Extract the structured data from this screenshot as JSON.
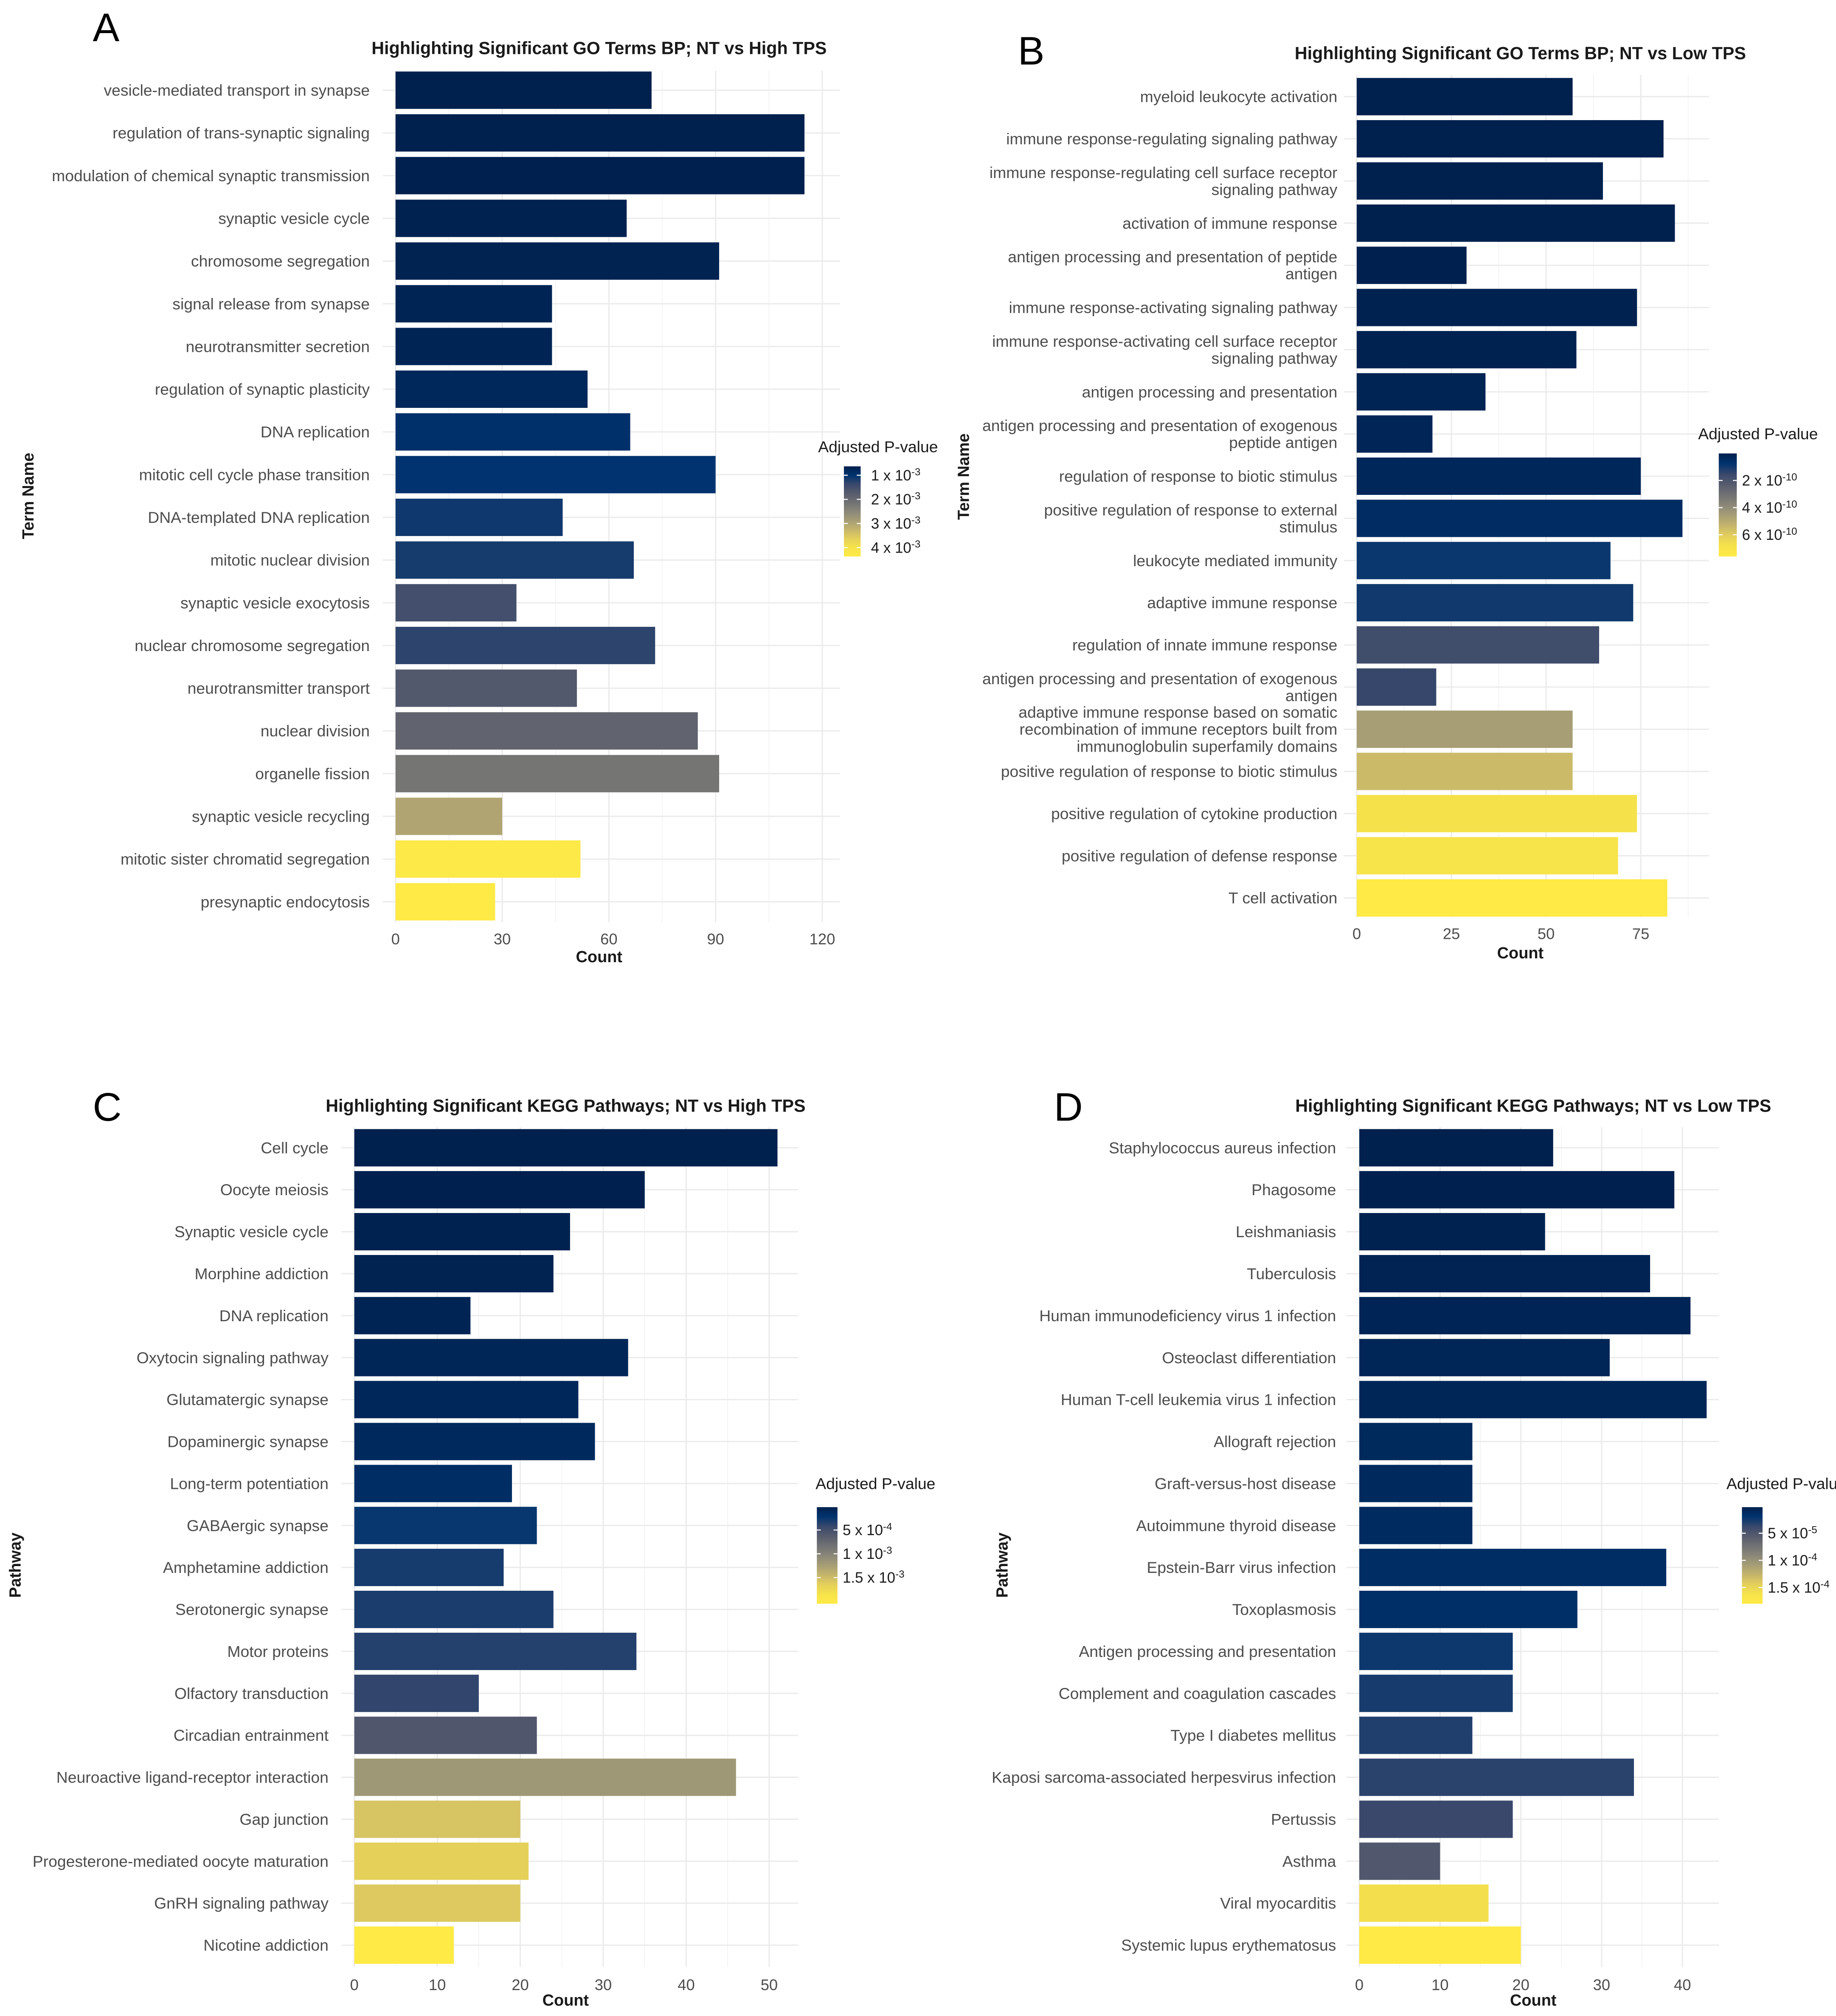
{
  "chart_data": [
    {
      "panel": "A",
      "type": "bar",
      "orientation": "horizontal",
      "title": "Highlighting Significant GO Terms BP; NT vs High TPS",
      "xlabel": "Count",
      "ylabel": "Term Name",
      "xlim": [
        0,
        125
      ],
      "xticks": [
        0,
        30,
        60,
        90,
        120
      ],
      "legend": {
        "title": "Adjusted P-value",
        "placement": "right",
        "ticks": [
          {
            "value": 0.001,
            "base": "1 x 10",
            "exp": "-3"
          },
          {
            "value": 0.002,
            "base": "2 x 10",
            "exp": "-3"
          },
          {
            "value": 0.003,
            "base": "3 x 10",
            "exp": "-3"
          },
          {
            "value": 0.004,
            "base": "4 x 10",
            "exp": "-3"
          }
        ]
      },
      "color_range": [
        0.00063,
        0.00437
      ],
      "categories": [
        "vesicle-mediated transport in synapse",
        "regulation of trans-synaptic signaling",
        "modulation of chemical synaptic transmission",
        "synaptic vesicle cycle",
        "chromosome segregation",
        "signal release from synapse",
        "neurotransmitter secretion",
        "regulation of synaptic plasticity",
        "DNA replication",
        "mitotic cell cycle phase transition",
        "DNA-templated DNA replication",
        "mitotic nuclear division",
        "synaptic vesicle exocytosis",
        "nuclear chromosome segregation",
        "neurotransmitter transport",
        "nuclear division",
        "organelle fission",
        "synaptic vesicle recycling",
        "mitotic sister chromatid segregation",
        "presynaptic endocytosis"
      ],
      "values": [
        72,
        115,
        115,
        65,
        91,
        44,
        44,
        54,
        66,
        90,
        47,
        67,
        34,
        73,
        51,
        85,
        91,
        30,
        52,
        28
      ],
      "padj": [
        0.00063,
        0.00064,
        0.00065,
        0.00066,
        0.00068,
        0.0007,
        0.00072,
        0.00078,
        0.00095,
        0.001,
        0.0011,
        0.00115,
        0.0015,
        0.0013,
        0.0017,
        0.0019,
        0.0022,
        0.003,
        0.0043,
        0.00437
      ]
    },
    {
      "panel": "B",
      "type": "bar",
      "orientation": "horizontal",
      "title": "Highlighting Significant GO Terms BP; NT vs Low TPS",
      "xlabel": "Count",
      "ylabel": "Term Name",
      "xlim": [
        0,
        93
      ],
      "xticks": [
        0,
        25,
        50,
        75
      ],
      "legend": {
        "title": "Adjusted P-value",
        "placement": "right",
        "ticks": [
          {
            "value": 2e-10,
            "base": "2 x 10",
            "exp": "-10"
          },
          {
            "value": 4e-10,
            "base": "4 x 10",
            "exp": "-10"
          },
          {
            "value": 6e-10,
            "base": "6 x 10",
            "exp": "-10"
          }
        ]
      },
      "color_range": [
        1e-12,
        7.6e-10
      ],
      "categories": [
        "myeloid leukocyte activation",
        "immune response-regulating signaling pathway",
        "immune response-regulating cell surface receptor\nsignaling pathway",
        "activation of immune response",
        "antigen processing and presentation of peptide\nantigen",
        "immune response-activating signaling pathway",
        "immune response-activating cell surface receptor\nsignaling pathway",
        "antigen processing and presentation",
        "antigen processing and presentation of exogenous\npeptide antigen",
        "regulation of response to biotic stimulus",
        "positive regulation of response to external\nstimulus",
        "leukocyte mediated immunity",
        "adaptive immune response",
        "regulation of innate immune response",
        "antigen processing and presentation of exogenous\nantigen",
        "adaptive immune response based on somatic\nrecombination of immune receptors built from\nimmunoglobulin superfamily domains",
        "positive regulation of response to biotic stimulus",
        "positive regulation of cytokine production",
        "positive regulation of defense response",
        "T cell activation"
      ],
      "values": [
        57,
        81,
        65,
        84,
        29,
        74,
        58,
        34,
        20,
        75,
        86,
        67,
        73,
        64,
        21,
        57,
        57,
        74,
        69,
        82
      ],
      "padj": [
        1e-12,
        2e-12,
        3e-12,
        4e-12,
        6e-12,
        8e-12,
        1e-11,
        1.5e-11,
        2e-11,
        3e-11,
        5e-11,
        9e-11,
        1e-10,
        1.7e-10,
        1.5e-10,
        4.6e-10,
        5.5e-10,
        6.8e-10,
        6.9e-10,
        7.6e-10
      ]
    },
    {
      "panel": "C",
      "type": "bar",
      "orientation": "horizontal",
      "title": "Highlighting Significant KEGG Pathways;  NT vs High TPS",
      "xlabel": "Count",
      "ylabel": "Pathway",
      "xlim": [
        0,
        53.5
      ],
      "xticks": [
        0,
        10,
        20,
        30,
        40,
        50
      ],
      "legend": {
        "title": "Adjusted P-value",
        "placement": "right",
        "ticks": [
          {
            "value": 0.0005,
            "base": "5 x 10",
            "exp": "-4"
          },
          {
            "value": 0.001,
            "base": "1 x 10",
            "exp": "-3"
          },
          {
            "value": 0.0015,
            "base": "1.5 x 10",
            "exp": "-3"
          }
        ]
      },
      "color_range": [
        2e-05,
        0.00205
      ],
      "categories": [
        "Cell cycle",
        "Oocyte meiosis",
        "Synaptic vesicle cycle",
        "Morphine addiction",
        "DNA replication",
        "Oxytocin signaling pathway",
        "Glutamatergic synapse",
        "Dopaminergic synapse",
        "Long-term potentiation",
        "GABAergic synapse",
        "Amphetamine addiction",
        "Serotonergic synapse",
        "Motor proteins",
        "Olfactory transduction",
        "Circadian entrainment",
        "Neuroactive ligand-receptor interaction",
        "Gap junction",
        "Progesterone-mediated oocyte maturation",
        "GnRH signaling pathway",
        "Nicotine addiction"
      ],
      "values": [
        51,
        35,
        26,
        24,
        14,
        33,
        27,
        29,
        19,
        22,
        18,
        24,
        34,
        15,
        22,
        46,
        20,
        21,
        20,
        12
      ],
      "padj": [
        2e-05,
        3e-05,
        4e-05,
        5e-05,
        7e-05,
        8e-05,
        0.0001,
        0.00012,
        0.00016,
        0.00025,
        0.0003,
        0.00032,
        0.00035,
        0.0004,
        0.00058,
        0.00119,
        0.00156,
        0.00165,
        0.0016,
        0.00205
      ]
    },
    {
      "panel": "D",
      "type": "bar",
      "orientation": "horizontal",
      "title": "Highlighting Significant KEGG Pathways;  NT vs Low TPS",
      "xlabel": "Count",
      "ylabel": "Pathway",
      "xlim": [
        0,
        44.5
      ],
      "xticks": [
        0,
        10,
        20,
        30,
        40
      ],
      "legend": {
        "title": "Adjusted P-value",
        "placement": "right",
        "ticks": [
          {
            "value": 5e-05,
            "base": "5 x 10",
            "exp": "-5"
          },
          {
            "value": 0.0001,
            "base": "1 x 10",
            "exp": "-4"
          },
          {
            "value": 0.00015,
            "base": "1.5 x 10",
            "exp": "-4"
          }
        ]
      },
      "color_range": [
        2e-06,
        0.00018
      ],
      "categories": [
        "Staphylococcus aureus infection",
        "Phagosome",
        "Leishmaniasis",
        "Tuberculosis",
        "Human immunodeficiency virus 1 infection",
        "Osteoclast differentiation",
        "Human T-cell leukemia virus 1 infection",
        "Allograft rejection",
        "Graft-versus-host disease",
        "Autoimmune thyroid disease",
        "Epstein-Barr virus infection",
        "Toxoplasmosis",
        "Antigen processing and presentation",
        "Complement and coagulation cascades",
        "Type I diabetes mellitus",
        "Kaposi sarcoma-associated herpesvirus infection",
        "Pertussis",
        "Asthma",
        "Viral myocarditis",
        "Systemic lupus erythematosus"
      ],
      "values": [
        24,
        39,
        23,
        36,
        41,
        31,
        43,
        14,
        14,
        14,
        38,
        27,
        19,
        19,
        14,
        34,
        19,
        10,
        16,
        20
      ],
      "padj": [
        2e-06,
        3e-06,
        4e-06,
        5e-06,
        6e-06,
        7e-06,
        8e-06,
        1e-05,
        1.1e-05,
        1.2e-05,
        1.4e-05,
        1.6e-05,
        2.4e-05,
        2.7e-05,
        3e-05,
        3.3e-05,
        3.8e-05,
        5.2e-05,
        0.000159,
        0.00018
      ]
    }
  ],
  "panel_letters": [
    "A",
    "B",
    "C",
    "D"
  ],
  "colors": {
    "low": "#00204D",
    "high": "#FFEA46",
    "grid": "#ebebeb"
  }
}
